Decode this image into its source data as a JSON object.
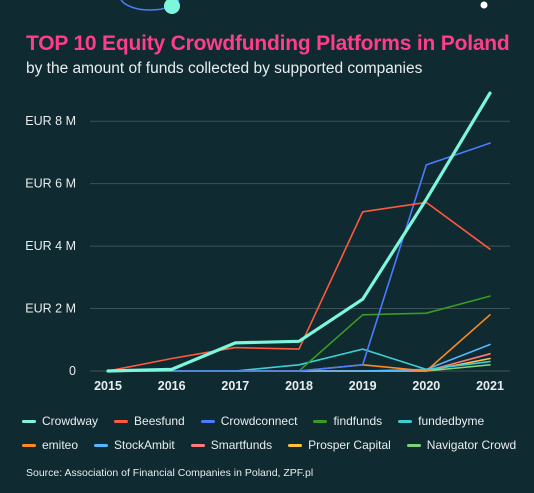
{
  "title": "TOP 10 Equity Crowdfunding Platforms in Poland",
  "subtitle": "by the amount of funds collected by supported companies",
  "source": "Source: Association of Financial Companies in Poland, ZPF.pl",
  "colors": {
    "background": "#0f2a30",
    "title": "#ff3d8a",
    "text": "#e8eef0",
    "grid": "#3d5258"
  },
  "chart_data": {
    "type": "line",
    "title": "TOP 10 Equity Crowdfunding Platforms in Poland",
    "subtitle": "by the amount of funds collected by supported companies",
    "x": [
      "2015",
      "2016",
      "2017",
      "2018",
      "2019",
      "2020",
      "2021"
    ],
    "y_ticks": [
      0,
      2,
      4,
      6,
      8
    ],
    "y_tick_labels": [
      "0",
      "EUR 2 M",
      "EUR 4 M",
      "EUR 6 M",
      "EUR 8 M"
    ],
    "ylim": [
      0,
      9
    ],
    "unit": "EUR M",
    "grid": true,
    "legend_position": "bottom",
    "series": [
      {
        "name": "Crowdway",
        "color": "#7df7dc",
        "values": [
          0.0,
          0.05,
          0.9,
          0.95,
          2.3,
          5.5,
          8.9
        ]
      },
      {
        "name": "Beesfund",
        "color": "#ff5a3c",
        "values": [
          0.0,
          0.4,
          0.75,
          0.7,
          5.1,
          5.4,
          3.9
        ]
      },
      {
        "name": "Crowdconnect",
        "color": "#4d7bff",
        "values": [
          0.0,
          0.0,
          0.0,
          0.0,
          0.2,
          6.6,
          7.3
        ]
      },
      {
        "name": "findfunds",
        "color": "#3a9a22",
        "values": [
          0.0,
          0.0,
          0.0,
          0.0,
          1.8,
          1.85,
          2.4
        ]
      },
      {
        "name": "fundedbyme",
        "color": "#3ad1d6",
        "values": [
          0.0,
          0.0,
          0.0,
          0.2,
          0.7,
          0.05,
          0.3
        ]
      },
      {
        "name": "emiteo",
        "color": "#ff8a1e",
        "values": [
          0.0,
          0.0,
          0.0,
          0.0,
          0.2,
          0.0,
          1.8
        ]
      },
      {
        "name": "StockAmbit",
        "color": "#53b8ff",
        "values": [
          0.0,
          0.0,
          0.0,
          0.0,
          0.0,
          0.05,
          0.85
        ]
      },
      {
        "name": "Smartfunds",
        "color": "#ff7a7a",
        "values": [
          0.0,
          0.0,
          0.0,
          0.0,
          0.0,
          0.0,
          0.55
        ]
      },
      {
        "name": "Prosper Capital",
        "color": "#ffc23a",
        "values": [
          0.0,
          0.0,
          0.0,
          0.0,
          0.0,
          0.0,
          0.4
        ]
      },
      {
        "name": "Navigator Crowd",
        "color": "#7fd07a",
        "values": [
          0.0,
          0.0,
          0.0,
          0.0,
          0.0,
          0.0,
          0.2
        ]
      }
    ]
  }
}
